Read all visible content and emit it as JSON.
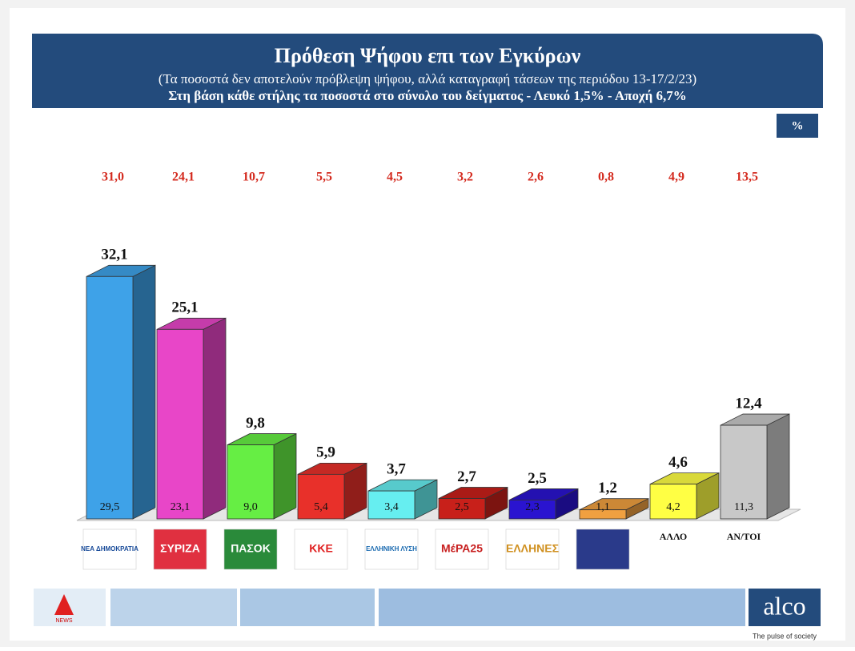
{
  "header": {
    "title": "Πρόθεση Ψήφου επι των Εγκύρων",
    "subtitle": "(Τα ποσοστά δεν αποτελούν πρόβλεψη ψήφου, αλλά καταγραφή τάσεων της περιόδου  13-17/2/23)",
    "note": "Στη βάση κάθε στήλης τα ποσοστά στο σύνολο του δείγματος - Λευκό 1,5% - Αποχή 6,7%",
    "unit": "%"
  },
  "chart_data": {
    "type": "bar3d",
    "categories": [
      "ΝΕΑ ΔΗΜΟΚΡΑΤΙΑ",
      "ΣΥΡΙΖΑ",
      "ΠΑΣΟΚ",
      "ΚΚΕ",
      "ΕΛΛΗΝΙΚΗ ΛΥΣΗ",
      "ΜέΡΑ25",
      "ΕΛΛΗΝΕΣ",
      null,
      "ΑΛΛΟ",
      "ΑΝ/ΤΟΙ"
    ],
    "series": [
      {
        "values": [
          32.1,
          25.1,
          9.8,
          5.9,
          3.7,
          2.7,
          2.5,
          1.2,
          4.6,
          12.4
        ],
        "value_labels": [
          "32,1",
          "25,1",
          "9,8",
          "5,9",
          "3,7",
          "2,7",
          "2,5",
          "1,2",
          "4,6",
          "12,4"
        ],
        "colors": [
          "#3ea2e8",
          "#e846c8",
          "#66ee44",
          "#e8302a",
          "#66eef0",
          "#c8201a",
          "#2a14d0",
          "#f0a040",
          "#ffff44",
          "#c8c8c8"
        ]
      },
      {
        "values": [
          29.5,
          23.1,
          9.0,
          5.4,
          3.4,
          2.5,
          2.3,
          1.1,
          4.2,
          11.3
        ],
        "value_labels": [
          "29,5",
          "23,1",
          "9,0",
          "5,4",
          "3,4",
          "2,5",
          "2,3",
          "1,1",
          "4,2",
          "11,3"
        ]
      },
      {
        "values": [
          31.0,
          24.1,
          10.7,
          5.5,
          4.5,
          3.2,
          2.6,
          0.8,
          4.9,
          13.5
        ],
        "value_labels": [
          "31,0",
          "24,1",
          "10,7",
          "5,5",
          "4,5",
          "3,2",
          "2,6",
          "0,8",
          "4,9",
          "13,5"
        ],
        "color": "#d42a1e"
      }
    ]
  },
  "footer": {
    "brand": "alco",
    "tagline": "The pulse of society",
    "news": "NEWS"
  }
}
